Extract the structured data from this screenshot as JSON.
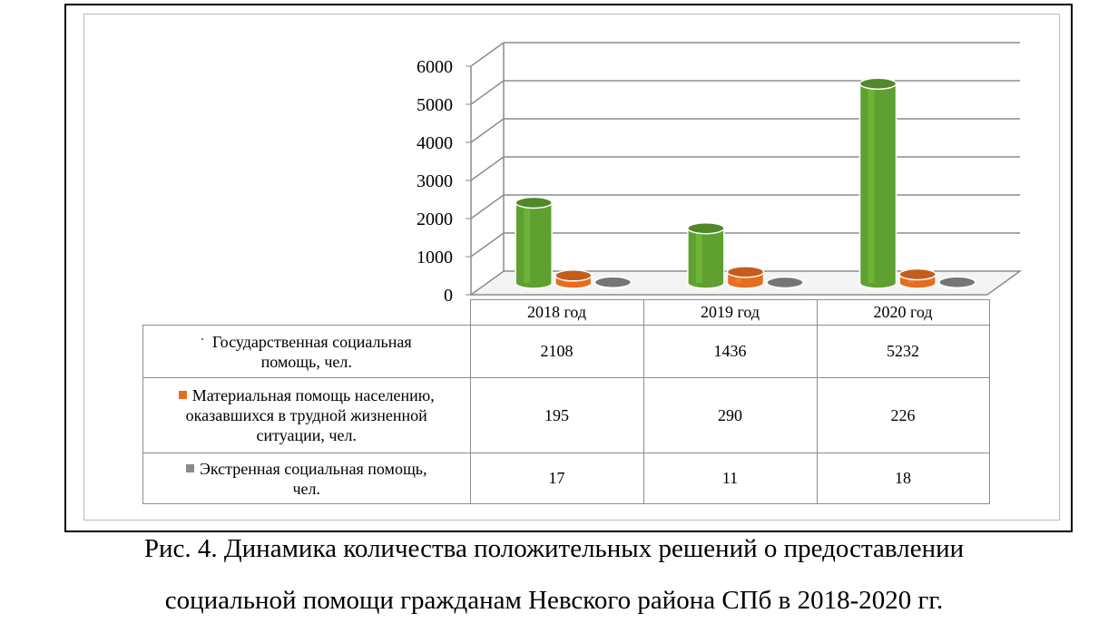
{
  "chart_data": {
    "type": "bar",
    "title": "",
    "xlabel": "",
    "ylabel": "",
    "ylim": [
      0,
      6000
    ],
    "y_ticks": [
      "0",
      "1000",
      "2000",
      "3000",
      "4000",
      "5000",
      "6000"
    ],
    "grid": true,
    "three_d": true,
    "bar_shape": "cylinder",
    "legend": "table",
    "categories": [
      "2018 год",
      "2019 год",
      "2020 год"
    ],
    "series": [
      {
        "name": "Государственная социальная помощь, чел.",
        "color": "#5fa031",
        "values": [
          2108,
          1436,
          5232
        ],
        "value_labels": [
          "2108",
          "1436",
          "5232"
        ]
      },
      {
        "name": "Материальная  помощь населению, оказавшихся в трудной жизненной ситуации, чел.",
        "color": "#e66c21",
        "values": [
          195,
          290,
          226
        ],
        "value_labels": [
          "195",
          "290",
          "226"
        ]
      },
      {
        "name": "Экстренная социальная помощь, чел.",
        "color": "#8a8a8a",
        "values": [
          17,
          11,
          18
        ],
        "value_labels": [
          "17",
          "11",
          "18"
        ]
      }
    ]
  },
  "table": {
    "series_labels": [
      {
        "line1": "Государственная социальная",
        "line2": "помощь, чел.",
        "line3": ""
      },
      {
        "line1": "Материальная  помощь населению,",
        "line2": "оказавшихся в трудной жизненной",
        "line3": "ситуации, чел."
      },
      {
        "line1": "Экстренная социальная помощь,",
        "line2": "чел.",
        "line3": ""
      }
    ]
  },
  "caption": {
    "line1": "Рис. 4. Динамика количества положительных решений  о предоставлении",
    "line2": "социальной помощи гражданам Невского района СПб в 2018-2020 гг."
  }
}
